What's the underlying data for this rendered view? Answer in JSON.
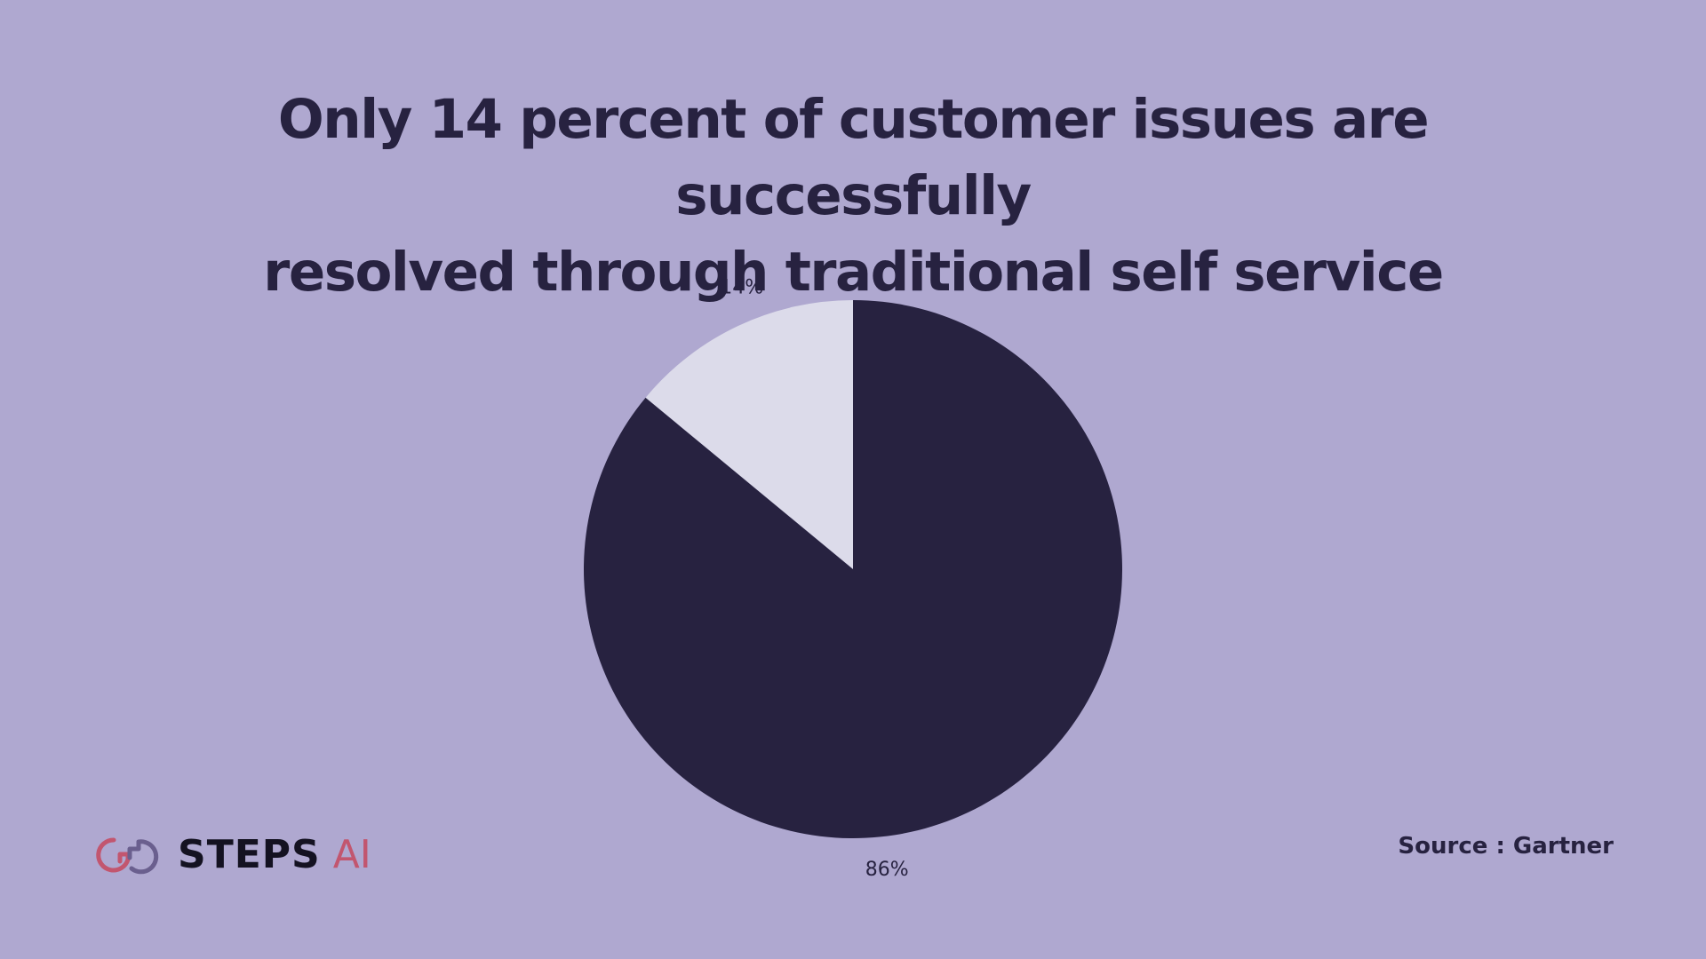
{
  "title": {
    "line1": "Only 14 percent of customer issues are successfully",
    "line2": "resolved through traditional self service"
  },
  "chart_data": {
    "type": "pie",
    "title": "Only 14 percent of customer issues are successfully resolved through traditional self service",
    "slices": [
      {
        "label": "14%",
        "value": 14,
        "color": "#dcdbea"
      },
      {
        "label": "86%",
        "value": 86,
        "color": "#272240"
      }
    ],
    "start": "12 o'clock",
    "direction": "counterclockwise-first-slice"
  },
  "logo": {
    "name": "STEPS",
    "accent": "AI",
    "icon": "steps-ai-logo-icon",
    "colors": {
      "primary": "#141221",
      "accent": "#c2566f"
    }
  },
  "source": "Source : Gartner",
  "colors": {
    "background": "#afa8d0",
    "text": "#272240"
  }
}
